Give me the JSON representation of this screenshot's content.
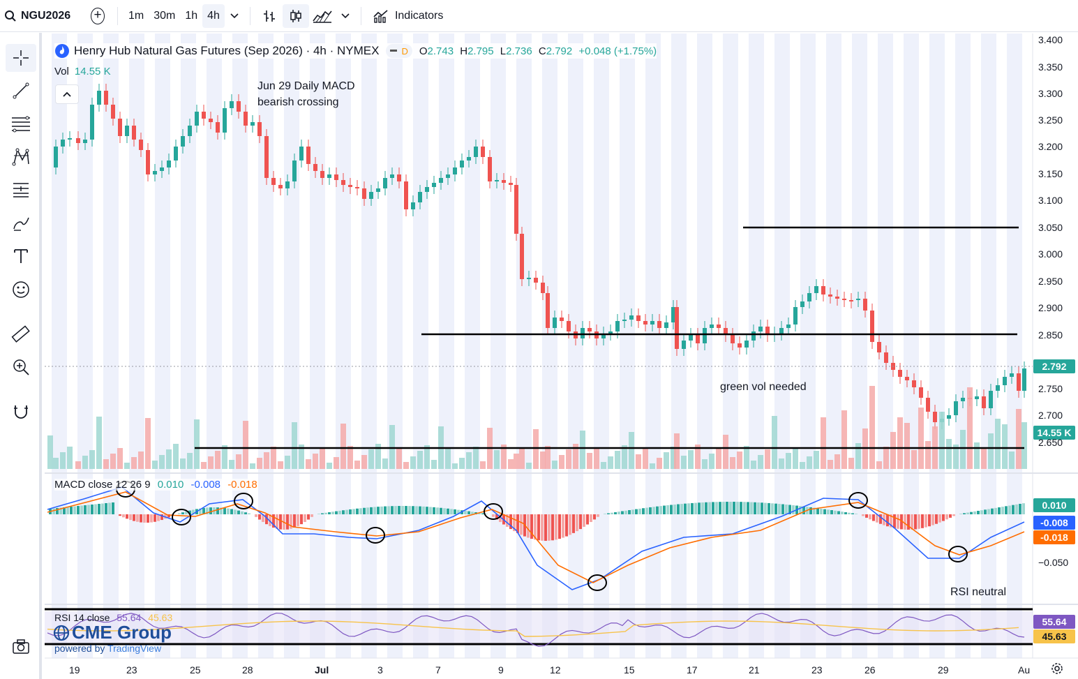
{
  "toolbar": {
    "symbol": "NGU2026",
    "intervals": [
      "1m",
      "30m",
      "1h",
      "4h"
    ],
    "active_interval": "4h",
    "indicators_label": "Indicators"
  },
  "legend": {
    "title": "Henry Hub Natural Gas Futures (Sep 2026) · 4h · NYMEX",
    "d_badge": "D",
    "open_label": "O",
    "open": "2.743",
    "high_label": "H",
    "high": "2.795",
    "low_label": "L",
    "low": "2.736",
    "close_label": "C",
    "close": "2.792",
    "change": "+0.048 (+1.75%)",
    "vol_label": "Vol",
    "vol_value": "14.55 K"
  },
  "annotations": {
    "macd_note_line1": "Jun 29 Daily MACD",
    "macd_note_line2": "bearish crossing",
    "green_vol": "green vol needed",
    "rsi_note": "RSI neutral"
  },
  "macd": {
    "label": "MACD close 12 26 9",
    "hist": "0.010",
    "macd": "-0.008",
    "signal": "-0.018",
    "axis_label": "−0.050"
  },
  "rsi": {
    "label": "RSI 14 close",
    "value": "55.64",
    "ma": "45.63"
  },
  "price_axis": [
    "3.400",
    "3.350",
    "3.300",
    "3.250",
    "3.200",
    "3.150",
    "3.100",
    "3.050",
    "3.000",
    "2.950",
    "2.900",
    "2.850",
    "2.750",
    "2.700",
    "2.650"
  ],
  "price_tags": {
    "last_price": "2.792",
    "vol_tag": "14.55 K",
    "macd_hist_tag": "0.010",
    "macd_tag": "-0.008",
    "signal_tag": "-0.018",
    "rsi_tag": "55.64",
    "rsi_ma_tag": "45.63"
  },
  "time_axis": [
    "19",
    "23",
    "25",
    "28",
    "Jul",
    "3",
    "7",
    "9",
    "12",
    "15",
    "17",
    "21",
    "23",
    "26",
    "29",
    "Au"
  ],
  "branding": {
    "cme": "CME Group",
    "powered": "powered by",
    "tv": "TradingView"
  },
  "colors": {
    "up": "#26a69a",
    "down": "#ef5350",
    "macd_line": "#2962ff",
    "signal_line": "#ff6d00",
    "rsi_line": "#7e57c2",
    "rsi_ma": "#f7c34a"
  }
}
